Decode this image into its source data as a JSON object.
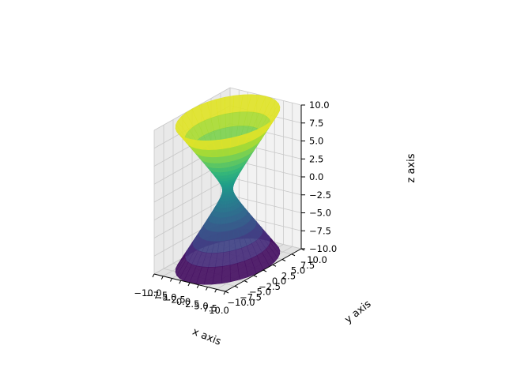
{
  "chart_data": {
    "type": "surface3d",
    "surface": "hyperboloid of one sheet",
    "equation": "x^2 + y^2 - z^2 = 1",
    "colormap": "viridis",
    "grid": true,
    "xlabel": "x axis",
    "ylabel": "y axis",
    "zlabel": "z axis",
    "xlim": [
      -10,
      10
    ],
    "ylim": [
      -10,
      10
    ],
    "zlim": [
      -10,
      10
    ],
    "xticks": [
      "−10.0",
      "−7.5",
      "−5.0",
      "−2.5",
      "0.0",
      "2.5",
      "5.0",
      "7.5",
      "10.0"
    ],
    "yticks": [
      "−10.0",
      "−7.5",
      "−5.0",
      "−2.5",
      "0.0",
      "2.5",
      "5.0",
      "7.5",
      "10.0"
    ],
    "zticks": [
      "−10.0",
      "−7.5",
      "−5.0",
      "−2.5",
      "0.0",
      "2.5",
      "5.0",
      "7.5",
      "10.0"
    ],
    "waist_radius": 1,
    "rim_radius": 10
  },
  "colors": {
    "pane_left": "#e9e9e9",
    "pane_right": "#f2f2f2",
    "pane_floor": "#e2e2e2",
    "grid": "#c8c8c8",
    "viridis_low": "#440154",
    "viridis_mid": "#21908d",
    "viridis_high": "#fde725"
  }
}
